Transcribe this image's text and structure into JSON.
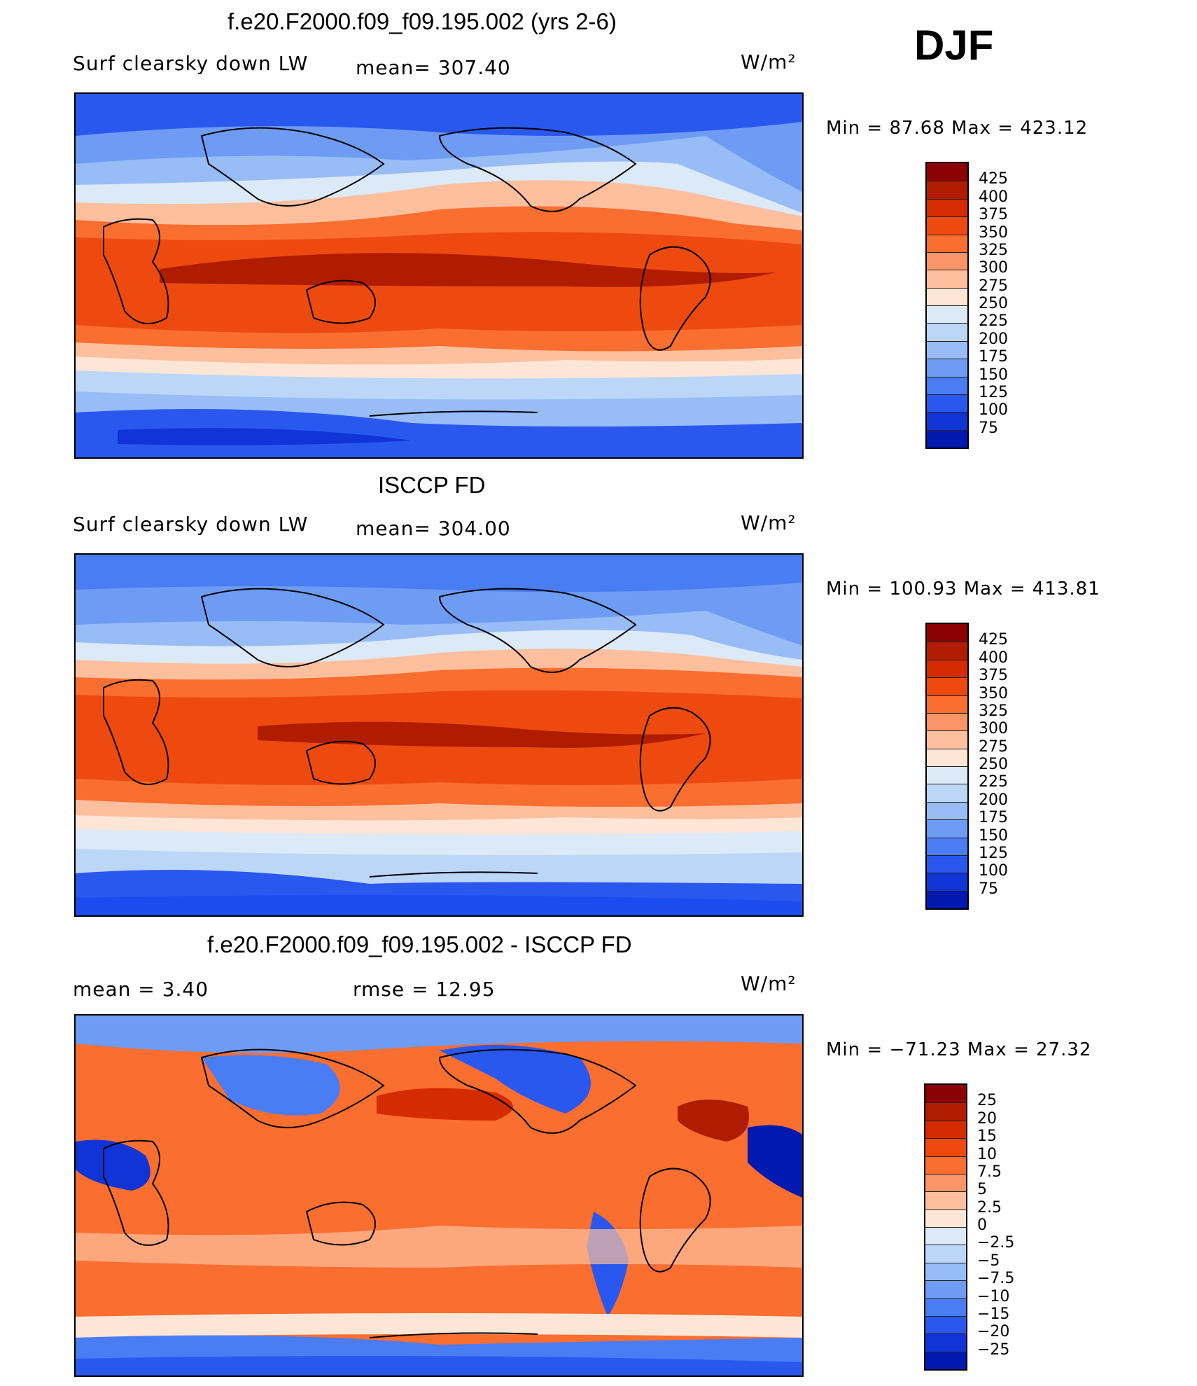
{
  "season": "DJF",
  "units": "W/m²",
  "chart_data": [
    {
      "type": "heatmap",
      "title": "f.e20.F2000.f09_f09.195.002 (yrs 2-6)",
      "left_label": "Surf clearsky down LW",
      "stat_text": "mean= 307.40",
      "units": "W/m²",
      "min_max_text": "Min =  87.68 Max = 423.12",
      "min": 87.68,
      "max": 423.12,
      "mean": 307.4,
      "colorbar_ticks": [
        "425",
        "400",
        "375",
        "350",
        "325",
        "300",
        "275",
        "250",
        "225",
        "200",
        "175",
        "150",
        "125",
        "100",
        "75"
      ],
      "colorbar_colors": [
        "#8b0000",
        "#b01c00",
        "#d42c00",
        "#ee4a10",
        "#fa6e30",
        "#fb9466",
        "#fdbf9e",
        "#fde6d6",
        "#dceaf8",
        "#bcd6f8",
        "#98bcf6",
        "#6e9cf4",
        "#4a7cf4",
        "#2a58ef",
        "#1034d6",
        "#001ab0"
      ]
    },
    {
      "type": "heatmap",
      "title": "ISCCP FD",
      "left_label": "Surf clearsky down LW",
      "stat_text": "mean= 304.00",
      "units": "W/m²",
      "min_max_text": "Min = 100.93 Max = 413.81",
      "min": 100.93,
      "max": 413.81,
      "mean": 304.0,
      "colorbar_ticks": [
        "425",
        "400",
        "375",
        "350",
        "325",
        "300",
        "275",
        "250",
        "225",
        "200",
        "175",
        "150",
        "125",
        "100",
        "75"
      ],
      "colorbar_colors": [
        "#8b0000",
        "#b01c00",
        "#d42c00",
        "#ee4a10",
        "#fa6e30",
        "#fb9466",
        "#fdbf9e",
        "#fde6d6",
        "#dceaf8",
        "#bcd6f8",
        "#98bcf6",
        "#6e9cf4",
        "#4a7cf4",
        "#2a58ef",
        "#1034d6",
        "#001ab0"
      ]
    },
    {
      "type": "heatmap",
      "title": "f.e20.F2000.f09_f09.195.002 - ISCCP FD",
      "left_label": "mean =    3.40",
      "stat_text": "rmse =   12.95",
      "units": "W/m²",
      "min_max_text": "Min = −71.23 Max =  27.32",
      "min": -71.23,
      "max": 27.32,
      "mean": 3.4,
      "rmse": 12.95,
      "colorbar_ticks": [
        "25",
        "20",
        "15",
        "10",
        "7.5",
        "5",
        "2.5",
        "0",
        "−2.5",
        "−5",
        "−7.5",
        "−10",
        "−15",
        "−20",
        "−25"
      ],
      "colorbar_colors": [
        "#8b0000",
        "#b01c00",
        "#d42c00",
        "#ee4a10",
        "#fa6e30",
        "#fb9466",
        "#fdbf9e",
        "#fde6d6",
        "#dceaf8",
        "#bcd6f8",
        "#98bcf6",
        "#6e9cf4",
        "#4a7cf4",
        "#2a58ef",
        "#1034d6",
        "#001ab0"
      ]
    }
  ]
}
